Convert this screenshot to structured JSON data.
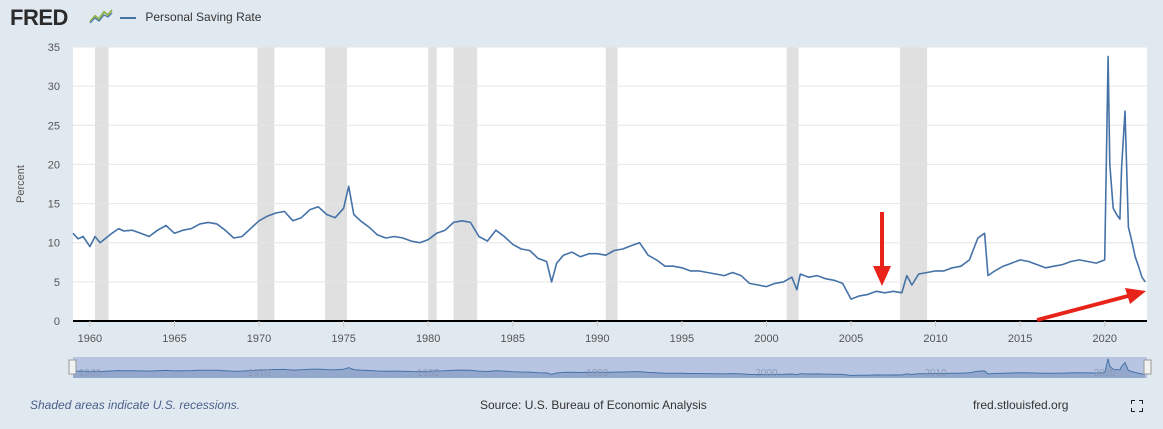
{
  "header": {
    "logo_text": "FRED",
    "legend_label": "Personal Saving Rate"
  },
  "footer": {
    "recession_note": "Shaded areas indicate U.S. recessions.",
    "source": "Source: U.S. Bureau of Economic Analysis",
    "site": "fred.stlouisfed.org"
  },
  "colors": {
    "series": "#4572a7",
    "recession": "#e0e0e0",
    "annotation": "#e8231a",
    "navigator_fill": "#b7c5e2"
  },
  "chart_data": {
    "type": "line",
    "title": "Personal Saving Rate",
    "ylabel": "Percent",
    "xlabel": "",
    "xlim": [
      1959.0,
      2022.5
    ],
    "ylim": [
      0,
      35
    ],
    "yticks": [
      0,
      5,
      10,
      15,
      20,
      25,
      30,
      35
    ],
    "xticks": [
      1960,
      1965,
      1970,
      1975,
      1980,
      1985,
      1990,
      1995,
      2000,
      2005,
      2010,
      2015,
      2020
    ],
    "navigator_ticks": [
      1960,
      1970,
      1980,
      1990,
      2000,
      2010,
      2020
    ],
    "recessions": [
      [
        1960.3,
        1961.1
      ],
      [
        1969.9,
        1970.9
      ],
      [
        1973.9,
        1975.2
      ],
      [
        1980.0,
        1980.5
      ],
      [
        1981.5,
        1982.9
      ],
      [
        1990.5,
        1991.2
      ],
      [
        2001.2,
        2001.9
      ],
      [
        2007.9,
        2009.5
      ]
    ],
    "series": [
      {
        "name": "Personal Saving Rate",
        "x": [
          1959.0,
          1959.3,
          1959.6,
          1960.0,
          1960.3,
          1960.6,
          1960.9,
          1961.3,
          1961.7,
          1962.0,
          1962.5,
          1963.0,
          1963.5,
          1964.0,
          1964.5,
          1965.0,
          1965.5,
          1966.0,
          1966.5,
          1967.0,
          1967.5,
          1968.0,
          1968.5,
          1969.0,
          1969.5,
          1970.0,
          1970.5,
          1971.0,
          1971.5,
          1972.0,
          1972.5,
          1973.0,
          1973.5,
          1974.0,
          1974.5,
          1975.0,
          1975.3,
          1975.6,
          1976.0,
          1976.5,
          1977.0,
          1977.5,
          1978.0,
          1978.5,
          1979.0,
          1979.5,
          1980.0,
          1980.5,
          1981.0,
          1981.5,
          1982.0,
          1982.5,
          1983.0,
          1983.5,
          1984.0,
          1984.5,
          1985.0,
          1985.5,
          1986.0,
          1986.5,
          1987.0,
          1987.3,
          1987.6,
          1988.0,
          1988.5,
          1989.0,
          1989.5,
          1990.0,
          1990.5,
          1991.0,
          1991.5,
          1992.0,
          1992.5,
          1993.0,
          1993.5,
          1994.0,
          1994.5,
          1995.0,
          1995.5,
          1996.0,
          1996.5,
          1997.0,
          1997.5,
          1998.0,
          1998.5,
          1999.0,
          1999.5,
          2000.0,
          2000.5,
          2001.0,
          2001.5,
          2001.8,
          2002.0,
          2002.5,
          2003.0,
          2003.5,
          2004.0,
          2004.5,
          2004.9,
          2005.0,
          2005.5,
          2006.0,
          2006.5,
          2007.0,
          2007.5,
          2008.0,
          2008.3,
          2008.6,
          2009.0,
          2009.5,
          2010.0,
          2010.5,
          2011.0,
          2011.5,
          2012.0,
          2012.5,
          2012.9,
          2013.1,
          2013.5,
          2014.0,
          2014.5,
          2015.0,
          2015.5,
          2016.0,
          2016.5,
          2017.0,
          2017.5,
          2018.0,
          2018.5,
          2019.0,
          2019.5,
          2020.0,
          2020.2,
          2020.3,
          2020.5,
          2020.7,
          2020.9,
          2021.0,
          2021.2,
          2021.4,
          2021.6,
          2021.8,
          2022.0,
          2022.2,
          2022.4
        ],
        "values": [
          11.2,
          10.5,
          10.8,
          9.5,
          10.8,
          10.0,
          10.5,
          11.2,
          11.8,
          11.5,
          11.6,
          11.2,
          10.8,
          11.6,
          12.2,
          11.2,
          11.6,
          11.8,
          12.4,
          12.6,
          12.4,
          11.6,
          10.6,
          10.8,
          11.8,
          12.8,
          13.4,
          13.8,
          14.0,
          12.8,
          13.2,
          14.2,
          14.6,
          13.6,
          13.2,
          14.4,
          17.2,
          13.6,
          12.8,
          12.0,
          11.0,
          10.6,
          10.8,
          10.6,
          10.2,
          10.0,
          10.4,
          11.2,
          11.6,
          12.6,
          12.8,
          12.6,
          10.8,
          10.2,
          11.6,
          10.8,
          9.8,
          9.2,
          9.0,
          8.0,
          7.6,
          5.0,
          7.4,
          8.4,
          8.8,
          8.2,
          8.6,
          8.6,
          8.4,
          9.0,
          9.2,
          9.6,
          10.0,
          8.4,
          7.8,
          7.0,
          7.0,
          6.8,
          6.4,
          6.4,
          6.2,
          6.0,
          5.8,
          6.2,
          5.8,
          4.8,
          4.6,
          4.4,
          4.8,
          5.0,
          5.6,
          4.0,
          6.0,
          5.6,
          5.8,
          5.4,
          5.2,
          4.8,
          3.2,
          2.8,
          3.2,
          3.4,
          3.8,
          3.6,
          3.8,
          3.6,
          5.8,
          4.6,
          6.0,
          6.2,
          6.4,
          6.4,
          6.8,
          7.0,
          7.8,
          10.6,
          11.2,
          5.8,
          6.4,
          7.0,
          7.4,
          7.8,
          7.6,
          7.2,
          6.8,
          7.0,
          7.2,
          7.6,
          7.8,
          7.6,
          7.4,
          7.8,
          33.8,
          20.0,
          14.4,
          13.6,
          13.0,
          19.6,
          26.8,
          12.0,
          10.2,
          8.2,
          7.0,
          5.6,
          5.0
        ]
      }
    ]
  }
}
